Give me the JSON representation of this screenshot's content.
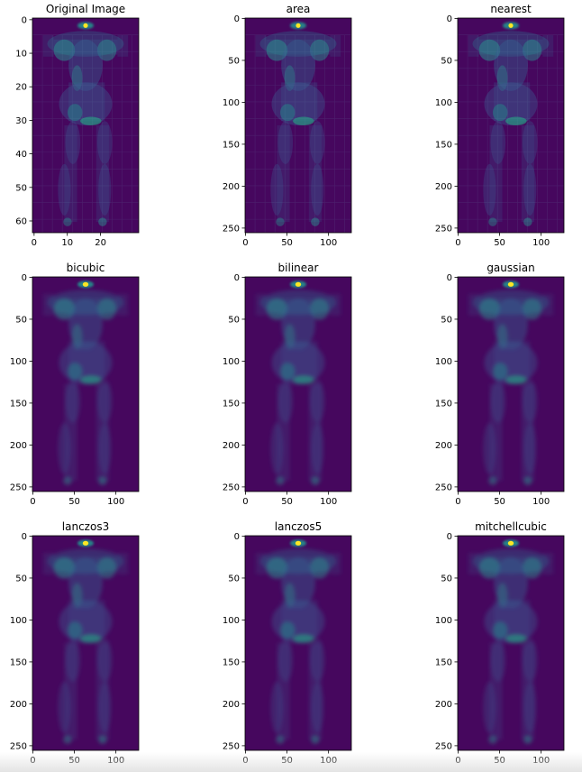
{
  "figure": {
    "background": "#ffffff",
    "layout": "3x3 grid"
  },
  "colormap": {
    "name": "viridis",
    "low": "#440154",
    "background": "#46075e",
    "mid": "#21918c",
    "high": "#fde725"
  },
  "chart_data": [
    {
      "type": "heatmap",
      "title": "Original Image",
      "image_size": [
        64,
        32
      ],
      "xticks": [
        0,
        10,
        20
      ],
      "yticks": [
        0,
        10,
        20,
        30,
        40,
        50,
        60
      ],
      "xlim": [
        -0.5,
        31.5
      ],
      "ylim": [
        63.5,
        -0.5
      ],
      "blur": 0
    },
    {
      "type": "heatmap",
      "title": "area",
      "image_size": [
        256,
        128
      ],
      "xticks": [
        0,
        50,
        100
      ],
      "yticks": [
        0,
        50,
        100,
        150,
        200,
        250
      ],
      "xlim": [
        -0.5,
        127.5
      ],
      "ylim": [
        255.5,
        -0.5
      ],
      "blur": 0
    },
    {
      "type": "heatmap",
      "title": "nearest",
      "image_size": [
        256,
        128
      ],
      "xticks": [
        0,
        50,
        100
      ],
      "yticks": [
        0,
        50,
        100,
        150,
        200,
        250
      ],
      "xlim": [
        -0.5,
        127.5
      ],
      "ylim": [
        255.5,
        -0.5
      ],
      "blur": 0
    },
    {
      "type": "heatmap",
      "title": "bicubic",
      "image_size": [
        256,
        128
      ],
      "xticks": [
        0,
        50,
        100
      ],
      "yticks": [
        0,
        50,
        100,
        150,
        200,
        250
      ],
      "xlim": [
        -0.5,
        127.5
      ],
      "ylim": [
        255.5,
        -0.5
      ],
      "blur": 1
    },
    {
      "type": "heatmap",
      "title": "bilinear",
      "image_size": [
        256,
        128
      ],
      "xticks": [
        0,
        50,
        100
      ],
      "yticks": [
        0,
        50,
        100,
        150,
        200,
        250
      ],
      "xlim": [
        -0.5,
        127.5
      ],
      "ylim": [
        255.5,
        -0.5
      ],
      "blur": 1
    },
    {
      "type": "heatmap",
      "title": "gaussian",
      "image_size": [
        256,
        128
      ],
      "xticks": [
        0,
        50,
        100
      ],
      "yticks": [
        0,
        50,
        100,
        150,
        200,
        250
      ],
      "xlim": [
        -0.5,
        127.5
      ],
      "ylim": [
        255.5,
        -0.5
      ],
      "blur": 1
    },
    {
      "type": "heatmap",
      "title": "lanczos3",
      "image_size": [
        256,
        128
      ],
      "xticks": [
        0,
        50,
        100
      ],
      "yticks": [
        0,
        50,
        100,
        150,
        200,
        250
      ],
      "xlim": [
        -0.5,
        127.5
      ],
      "ylim": [
        255.5,
        -0.5
      ],
      "blur": 1
    },
    {
      "type": "heatmap",
      "title": "lanczos5",
      "image_size": [
        256,
        128
      ],
      "xticks": [
        0,
        50,
        100
      ],
      "yticks": [
        0,
        50,
        100,
        150,
        200,
        250
      ],
      "xlim": [
        -0.5,
        127.5
      ],
      "ylim": [
        255.5,
        -0.5
      ],
      "blur": 1
    },
    {
      "type": "heatmap",
      "title": "mitchellcubic",
      "image_size": [
        256,
        128
      ],
      "xticks": [
        0,
        50,
        100
      ],
      "yticks": [
        0,
        50,
        100,
        150,
        200,
        250
      ],
      "xlim": [
        -0.5,
        127.5
      ],
      "ylim": [
        255.5,
        -0.5
      ],
      "blur": 1
    }
  ]
}
